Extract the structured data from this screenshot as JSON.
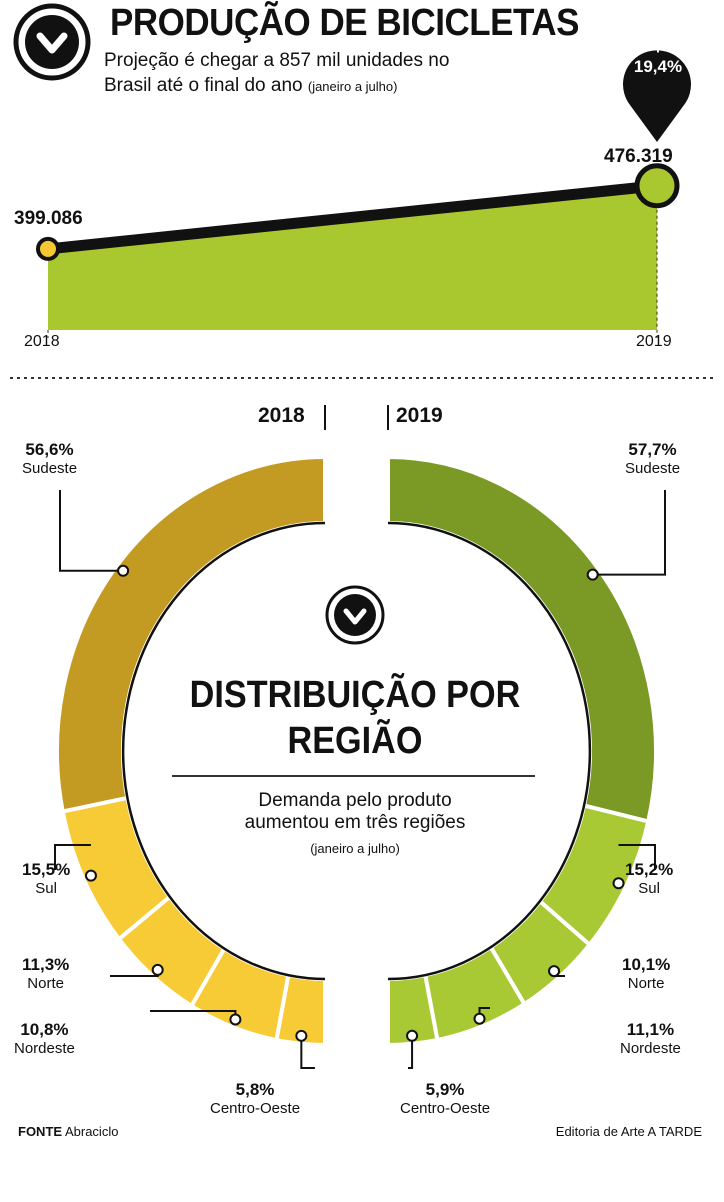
{
  "header": {
    "title": "PRODUÇÃO DE BICICLETAS",
    "subtitle_line1": "Projeção é chegar a 857 mil unidades no",
    "subtitle_line2": "Brasil até o final do ano",
    "subtitle_note": "(janeiro a julho)",
    "logo_icon": "chevron-down-circle-icon"
  },
  "chart_data": [
    {
      "type": "area",
      "categories": [
        "2018",
        "2019"
      ],
      "values": [
        399086,
        476319
      ],
      "value_labels": [
        "399.086",
        "476.319"
      ],
      "annotation": {
        "sign": "+",
        "value": "19,4%"
      },
      "colors": {
        "fill": "#a9c72e",
        "line": "#111111",
        "point_2018": "#f5c733",
        "point_2019": "#a9c72e"
      }
    },
    {
      "type": "pie",
      "title": "DISTRIBUIÇÃO POR REGIÃO",
      "subtitle_line1": "Demanda pelo produto",
      "subtitle_line2": "aumentou em três regiões",
      "note": "(janeiro a julho)",
      "groups": [
        {
          "year": "2018",
          "slices": [
            {
              "region": "Sudeste",
              "value": 56.6,
              "label": "56,6%",
              "color": "#c39a22"
            },
            {
              "region": "Sul",
              "value": 15.5,
              "label": "15,5%",
              "color": "#f7cb36"
            },
            {
              "region": "Norte",
              "value": 11.3,
              "label": "11,3%",
              "color": "#f7cb36"
            },
            {
              "region": "Nordeste",
              "value": 10.8,
              "label": "10,8%",
              "color": "#f7cb36"
            },
            {
              "region": "Centro-Oeste",
              "value": 5.8,
              "label": "5,8%",
              "color": "#f7cb36"
            }
          ]
        },
        {
          "year": "2019",
          "slices": [
            {
              "region": "Sudeste",
              "value": 57.7,
              "label": "57,7%",
              "color": "#7b9a25"
            },
            {
              "region": "Sul",
              "value": 15.2,
              "label": "15,2%",
              "color": "#a9c934"
            },
            {
              "region": "Norte",
              "value": 10.1,
              "label": "10,1%",
              "color": "#a9c934"
            },
            {
              "region": "Nordeste",
              "value": 11.1,
              "label": "11,1%",
              "color": "#a9c934"
            },
            {
              "region": "Centro-Oeste",
              "value": 5.9,
              "label": "5,9%",
              "color": "#a9c934"
            }
          ]
        }
      ]
    }
  ],
  "footer": {
    "source_label": "FONTE",
    "source": "Abraciclo",
    "credit": "Editoria de Arte A TARDE"
  }
}
